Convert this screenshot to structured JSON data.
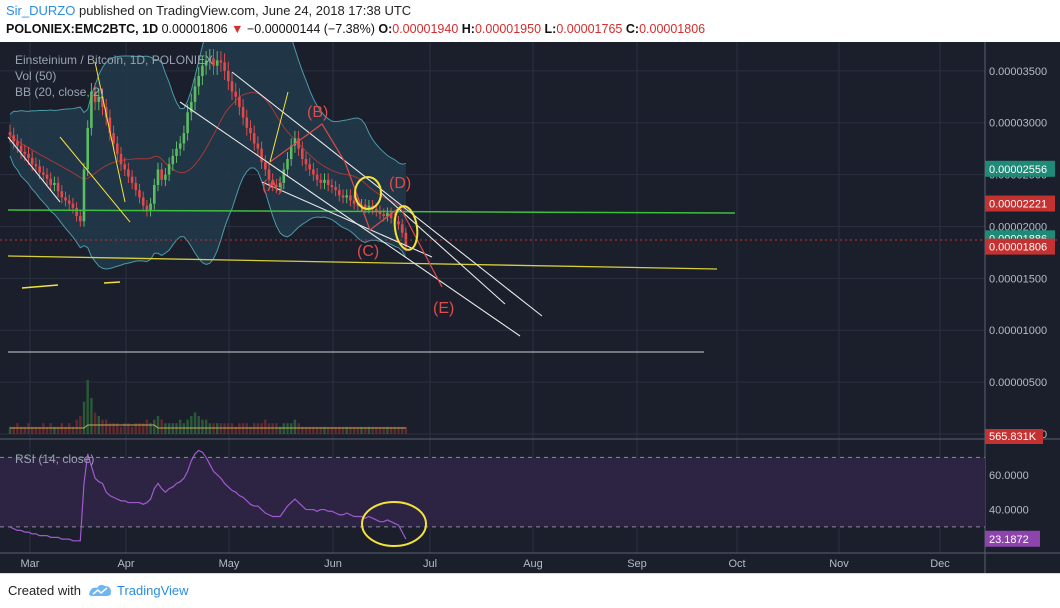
{
  "header": {
    "author": "Sir_DURZO",
    "published": "published on TradingView.com, June 24, 2018 17:38 UTC",
    "symbol": "POLONIEX:EMC2BTC, 1D",
    "last": "0.00001806",
    "change": "−0.00000144 (−7.38%)",
    "open_label": "O:",
    "open": "0.00001940",
    "high_label": "H:",
    "high": "0.00001950",
    "low_label": "L:",
    "low": "0.00001765",
    "close_label": "C:",
    "close": "0.00001806"
  },
  "legend": {
    "title": "Einsteinium / Bitcoin, 1D, POLONIEX",
    "vol": "Vol (50)",
    "bb": "BB (20, close, 2)",
    "rsi": "RSI (14, close)"
  },
  "footer": {
    "created": "Created with",
    "brand": "TradingView"
  },
  "colors": {
    "background": "#1a1f2b",
    "grid": "#2a3040",
    "up": "#5dbb63",
    "down": "#e04a4a",
    "bb_fill": "#22394a",
    "rsi_band": "#2c2442",
    "rsi_line": "#a05ad0",
    "annotation_red": "#e04a4a",
    "annotation_yellow": "#f3e23a",
    "support_green": "#3fbf3f",
    "badge_green": "#1f8a77",
    "badge_red": "#c43131",
    "badge_purple": "#8e44ad"
  },
  "chart_data": {
    "type": "candlestick",
    "x_ticks": [
      "Mar",
      "Apr",
      "May",
      "Jun",
      "Jul",
      "Aug",
      "Sep",
      "Oct",
      "Nov",
      "Dec"
    ],
    "price_ticks": [
      "0.00003500",
      "0.00003000",
      "0.00002500",
      "0.00002000",
      "0.00001500",
      "0.00001000",
      "0.00000500",
      "0.00000000"
    ],
    "price_ylim": [
      0,
      3.72e-05
    ],
    "price_markers": [
      {
        "value": "0.00002556",
        "role": "bb-upper"
      },
      {
        "value": "0.00002221",
        "role": "bb-basis"
      },
      {
        "value": "0.00001886",
        "role": "bb-lower"
      },
      {
        "value": "0.00001806",
        "role": "last-close"
      }
    ],
    "volume_marker": "565.831K",
    "rsi_ticks": [
      "60.0000",
      "40.0000"
    ],
    "rsi_ylim": [
      15,
      80
    ],
    "rsi_bands": [
      70,
      30
    ],
    "rsi_last": "23.1872",
    "wave_labels": [
      "(A)",
      "(B)",
      "(C)",
      "(D)",
      "(E)"
    ],
    "closes": [
      2.88,
      2.82,
      2.78,
      2.72,
      2.7,
      2.66,
      2.6,
      2.58,
      2.52,
      2.5,
      2.46,
      2.4,
      2.42,
      2.34,
      2.28,
      2.25,
      2.22,
      2.18,
      2.1,
      2.05,
      2.55,
      2.95,
      3.3,
      3.2,
      3.25,
      3.15,
      3.05,
      2.9,
      2.8,
      2.7,
      2.6,
      2.55,
      2.48,
      2.42,
      2.35,
      2.28,
      2.2,
      2.15,
      2.22,
      2.4,
      2.55,
      2.45,
      2.5,
      2.6,
      2.68,
      2.75,
      2.8,
      2.9,
      3.1,
      3.2,
      3.35,
      3.45,
      3.55,
      3.6,
      3.62,
      3.55,
      3.6,
      3.58,
      3.5,
      3.4,
      3.3,
      3.25,
      3.15,
      3.05,
      2.95,
      2.9,
      2.8,
      2.75,
      2.62,
      2.55,
      2.45,
      2.4,
      2.38,
      2.42,
      2.55,
      2.65,
      2.78,
      2.85,
      2.75,
      2.65,
      2.6,
      2.55,
      2.5,
      2.45,
      2.42,
      2.45,
      2.4,
      2.38,
      2.35,
      2.3,
      2.28,
      2.3,
      2.25,
      2.22,
      2.2,
      2.21,
      2.18,
      2.2,
      2.17,
      2.15,
      2.12,
      2.1,
      2.13,
      2.08,
      2.05,
      2.02,
      1.94,
      1.806
    ],
    "volumes": [
      2,
      2,
      3,
      2,
      2,
      3,
      2,
      2,
      2,
      3,
      2,
      3,
      2,
      2,
      3,
      2,
      3,
      2,
      4,
      5,
      9,
      15,
      10,
      6,
      5,
      4,
      4,
      3,
      3,
      3,
      2,
      3,
      3,
      2,
      3,
      3,
      3,
      4,
      3,
      4,
      5,
      4,
      3,
      3,
      3,
      3,
      4,
      3,
      4,
      5,
      6,
      5,
      4,
      4,
      3,
      3,
      3,
      3,
      3,
      3,
      3,
      2,
      3,
      3,
      3,
      2,
      3,
      3,
      3,
      4,
      3,
      3,
      3,
      2,
      3,
      3,
      3,
      4,
      3,
      2,
      2,
      2,
      2,
      2,
      2,
      2,
      2,
      2,
      2,
      2,
      2,
      2,
      2,
      2,
      2,
      2,
      2,
      2,
      2,
      2,
      2,
      2,
      2,
      2,
      2,
      2,
      2,
      2
    ],
    "rsi": [
      30,
      29,
      28,
      28,
      27,
      27,
      26,
      26,
      25,
      25,
      25,
      24,
      24,
      24,
      23,
      23,
      23,
      22,
      22,
      22,
      55,
      72,
      65,
      58,
      56,
      55,
      50,
      48,
      47,
      46,
      45,
      45,
      44,
      44,
      44,
      44,
      43,
      44,
      46,
      52,
      55,
      52,
      50,
      52,
      53,
      55,
      56,
      58,
      62,
      68,
      72,
      74,
      73,
      70,
      66,
      62,
      60,
      58,
      55,
      53,
      51,
      50,
      48,
      47,
      45,
      43,
      42,
      42,
      40,
      38,
      37,
      36,
      36,
      36,
      39,
      42,
      44,
      46,
      44,
      42,
      40,
      40,
      40,
      39,
      40,
      40,
      39,
      39,
      38,
      37,
      37,
      38,
      37,
      36,
      36,
      36,
      35,
      36,
      35,
      34,
      33,
      33,
      34,
      33,
      32,
      31,
      27,
      23
    ]
  }
}
